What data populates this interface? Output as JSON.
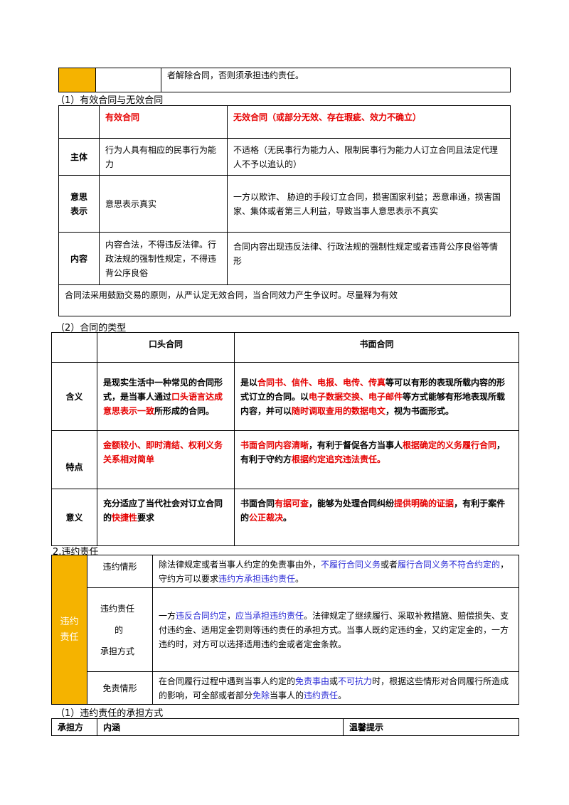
{
  "top_table": {
    "text": "者解除合同，否则须承担违约责任。"
  },
  "section1": {
    "heading": "（1）有效合同与无效合同",
    "head_valid": "有效合同",
    "head_invalid": "无效合同（或部分无效、存在瑕疵、效力不确立）",
    "rows": [
      {
        "label": "主体",
        "valid": "行为人具有相应的民事行为能力",
        "invalid": "不适格（无民事行为能力人、限制民事行为能力人订立合同且法定代理人不予以追认的）"
      },
      {
        "label": "意思表示",
        "valid": "意思表示真实",
        "invalid": "一方以欺诈、 胁迫的手段订立合同，损害国家利益；恶意串通，损害国家、集体或者第三人利益，导致当事人意思表示不真实"
      },
      {
        "label": "内容",
        "valid": "内容合法，不得违反法律。行政法规的强制性规定，不得违背公序良俗",
        "invalid": "合同内容出现违反法律、行政法规的强制性规定或者违背公序良俗等情形"
      }
    ],
    "note": "合同法采用鼓励交易的原则，从严认定无效合同，当合同效力产生争议时。尽量释为有效"
  },
  "section2": {
    "heading": "（2）合同的类型",
    "head_oral": "口头合同",
    "head_written": "书面合同",
    "rows": [
      {
        "label": "含义",
        "oral": [
          {
            "t": "是现实生活中一种常见的合同形式，是当事人通过",
            "red": false
          },
          {
            "t": "口头语言达成意思表示一致",
            "red": true
          },
          {
            "t": "所形成的合同。",
            "red": false
          }
        ],
        "written": [
          {
            "t": "是以",
            "red": false
          },
          {
            "t": "合同书、信件、电报、电传、传真",
            "red": true
          },
          {
            "t": "等可以有形的表现所载内容的形式订立的合同。以",
            "red": false
          },
          {
            "t": "电子数据交换、电子邮件",
            "red": true
          },
          {
            "t": "等方式能够有形地表现所载内容，并可以",
            "red": false
          },
          {
            "t": "随时调取查用的数据电文",
            "red": true
          },
          {
            "t": "，视为书面形式。",
            "red": false
          }
        ]
      },
      {
        "label": "特点",
        "oral": [
          {
            "t": "金额较小、即时清结、权利义务关系相对简单",
            "red": true
          }
        ],
        "written": [
          {
            "t": "书面合同内容清晰",
            "red": true
          },
          {
            "t": "，有利于督促各方当事人",
            "red": false
          },
          {
            "t": "根据确定的义务履行合同",
            "red": true
          },
          {
            "t": "，有利于守约方",
            "red": false
          },
          {
            "t": "根据约定追究违法责任。",
            "red": true
          }
        ]
      },
      {
        "label": "意义",
        "oral": [
          {
            "t": "充分适应了当代社会对订立合同的",
            "red": false
          },
          {
            "t": "快捷性",
            "red": true
          },
          {
            "t": "要求",
            "red": false
          }
        ],
        "written": [
          {
            "t": "书面合同",
            "red": false
          },
          {
            "t": "有据可查",
            "red": true
          },
          {
            "t": "，能够为处理合同纠纷",
            "red": false
          },
          {
            "t": "提供明确的证据",
            "red": true
          },
          {
            "t": "，有利于案件的",
            "red": false
          },
          {
            "t": "公正裁决",
            "red": true
          },
          {
            "t": "。",
            "red": false
          }
        ]
      }
    ]
  },
  "section3": {
    "heading": "2.违约责任",
    "side_label": "违约责任",
    "rows": [
      {
        "label": "违约情形",
        "content": [
          {
            "t": "除法律规定或者当事人约定的免责事由外，",
            "blue": false
          },
          {
            "t": "不履行合同义务",
            "blue": true
          },
          {
            "t": "或者",
            "blue": false
          },
          {
            "t": "履行合同义务不符合约定的",
            "blue": true
          },
          {
            "t": "，守约方可以要求",
            "blue": false
          },
          {
            "t": "违约方承担违约责任",
            "blue": true
          },
          {
            "t": "。",
            "blue": false
          }
        ]
      },
      {
        "label_lines": [
          "违约责任",
          "的",
          "承担方式"
        ],
        "content": [
          {
            "t": "一方",
            "blue": false
          },
          {
            "t": "违反合同约定",
            "blue": true
          },
          {
            "t": "，",
            "blue": false
          },
          {
            "t": "应当承担违约责任",
            "blue": true
          },
          {
            "t": "。法律规定了继续履行、采取补救措施、赔偿损失、支付违约金、适用定金罚则等违约责任的承担方式。当事人既约定违约金，又约定定金的，一方违约时，对方可以选择适用违约金或者定金条款。",
            "blue": false
          }
        ]
      },
      {
        "label": "免责情形",
        "content": [
          {
            "t": "在合同履行过程中遇到当事人约定的",
            "blue": false
          },
          {
            "t": "免责事由",
            "blue": true
          },
          {
            "t": "或",
            "blue": false
          },
          {
            "t": "不可抗力",
            "blue": true
          },
          {
            "t": "时，根据这些情形对合同履行所造成的影响，可全部或者部分",
            "blue": false
          },
          {
            "t": "免除",
            "blue": true
          },
          {
            "t": "当事人的",
            "blue": false
          },
          {
            "t": "违约责任",
            "blue": true
          },
          {
            "t": "。",
            "blue": false
          }
        ]
      }
    ]
  },
  "section4": {
    "heading": "（1）违约责任的承担方式",
    "col1": "承担方",
    "col2": "内涵",
    "col3": "温馨提示"
  },
  "colors": {
    "orange": "#f5b300",
    "red": "#e60000",
    "blue": "#2b2bd6"
  }
}
